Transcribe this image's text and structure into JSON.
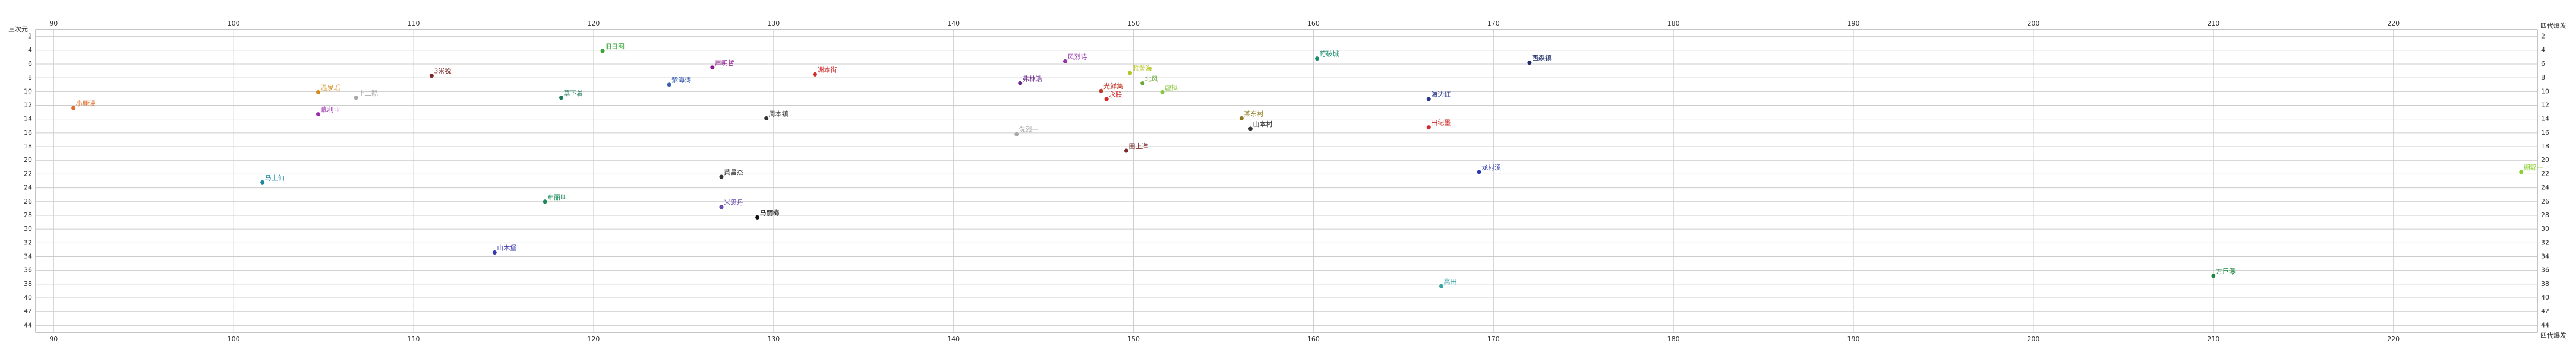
{
  "chart_data": {
    "type": "scatter",
    "x_label": "四代爆发",
    "y_label": "三次元",
    "xlim": [
      89,
      228
    ],
    "xticks": [
      90,
      100,
      110,
      120,
      130,
      140,
      150,
      160,
      170,
      180,
      190,
      200,
      210,
      220
    ],
    "ylim": [
      1,
      45
    ],
    "y_inverted": true,
    "yticks": [
      2,
      4,
      6,
      8,
      10,
      12,
      14,
      16,
      18,
      20,
      22,
      24,
      26,
      28,
      30,
      32,
      34,
      36,
      38,
      40,
      42,
      44
    ],
    "grid": true,
    "points": [
      {
        "label": "小鹿漫",
        "x": 91.1,
        "y": 12.4,
        "color": "#e0702a"
      },
      {
        "label": "温泉瑶",
        "x": 104.7,
        "y": 10.1,
        "color": "#d9891c"
      },
      {
        "label": "上二酷",
        "x": 106.8,
        "y": 10.9,
        "color": "#a8a8a8"
      },
      {
        "label": "慕利亚",
        "x": 104.7,
        "y": 13.3,
        "color": "#9b2fae"
      },
      {
        "label": "3米锐",
        "x": 111.0,
        "y": 7.7,
        "color": "#7a2a2a"
      },
      {
        "label": "旧日图",
        "x": 120.5,
        "y": 4.1,
        "color": "#3aa63a"
      },
      {
        "label": "草下着",
        "x": 118.2,
        "y": 10.9,
        "color": "#1a7a5a"
      },
      {
        "label": "紫海涛",
        "x": 124.2,
        "y": 9.0,
        "color": "#3a5fb0"
      },
      {
        "label": "声明哲",
        "x": 126.6,
        "y": 6.5,
        "color": "#8a1a8a"
      },
      {
        "label": "洲本街",
        "x": 132.3,
        "y": 7.5,
        "color": "#d02a2a"
      },
      {
        "label": "周本镇",
        "x": 129.6,
        "y": 13.9,
        "color": "#333333"
      },
      {
        "label": "风烈诗",
        "x": 146.2,
        "y": 5.6,
        "color": "#9b2fae"
      },
      {
        "label": "弗林浩",
        "x": 143.7,
        "y": 8.8,
        "color": "#6a2a8a"
      },
      {
        "label": "洗烈一",
        "x": 143.5,
        "y": 16.2,
        "color": "#a8a8a8"
      },
      {
        "label": "雅黄海",
        "x": 149.8,
        "y": 7.3,
        "color": "#b5c520"
      },
      {
        "label": "光鲜集",
        "x": 148.2,
        "y": 9.9,
        "color": "#c0392b"
      },
      {
        "label": "永联",
        "x": 148.5,
        "y": 11.1,
        "color": "#d02a2a"
      },
      {
        "label": "北风",
        "x": 150.5,
        "y": 8.8,
        "color": "#6aa63a"
      },
      {
        "label": "虚拟",
        "x": 151.6,
        "y": 10.1,
        "color": "#8ac540"
      },
      {
        "label": "荀破城",
        "x": 160.2,
        "y": 5.2,
        "color": "#1a8a6a"
      },
      {
        "label": "西森镇",
        "x": 172.0,
        "y": 5.8,
        "color": "#1a2a6a"
      },
      {
        "label": "某东村",
        "x": 156.0,
        "y": 13.9,
        "color": "#8a7a1a"
      },
      {
        "label": "山本村",
        "x": 156.5,
        "y": 15.4,
        "color": "#333333"
      },
      {
        "label": "海边红",
        "x": 166.4,
        "y": 11.1,
        "color": "#2a3a8a"
      },
      {
        "label": "田纪墨",
        "x": 166.4,
        "y": 15.2,
        "color": "#d02a2a"
      },
      {
        "label": "田上洋",
        "x": 149.6,
        "y": 18.6,
        "color": "#7a2a2a"
      },
      {
        "label": "龙村溪",
        "x": 169.2,
        "y": 21.7,
        "color": "#2a3ab0"
      },
      {
        "label": "棚野一",
        "x": 227.1,
        "y": 21.7,
        "color": "#8ad030"
      },
      {
        "label": "马上仙",
        "x": 101.6,
        "y": 23.2,
        "color": "#1a8aa0"
      },
      {
        "label": "黄昌杰",
        "x": 127.1,
        "y": 22.4,
        "color": "#333333"
      },
      {
        "label": "布丽叫",
        "x": 117.3,
        "y": 26.0,
        "color": "#1a8a5a"
      },
      {
        "label": "米思丹",
        "x": 127.1,
        "y": 26.8,
        "color": "#6a4ab0"
      },
      {
        "label": "马丽梅",
        "x": 129.1,
        "y": 28.3,
        "color": "#111111"
      },
      {
        "label": "山木堡",
        "x": 114.5,
        "y": 33.4,
        "color": "#3a3ab0"
      },
      {
        "label": "方巨瀑",
        "x": 210.0,
        "y": 36.8,
        "color": "#1a8a3a"
      },
      {
        "label": "高田",
        "x": 167.1,
        "y": 38.3,
        "color": "#3aa6a6"
      }
    ]
  }
}
